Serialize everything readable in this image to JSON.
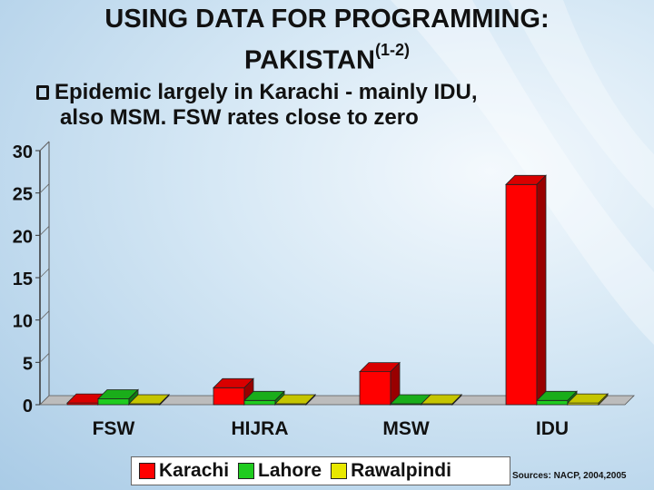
{
  "slide": {
    "title_line1": "USING DATA FOR PROGRAMMING:",
    "title_line2": "PAKISTAN",
    "title_sup": "(1-2)",
    "bullet_line1": "Epidemic largely in Karachi - mainly IDU,",
    "bullet_line2": "also MSM. FSW rates close to zero",
    "source": "Sources: NACP, 2004,2005"
  },
  "colors": {
    "Karachi": "#ff0000",
    "Lahore": "#1fcc1f",
    "Rawalpindi": "#e8e800"
  },
  "chart_data": {
    "type": "bar",
    "categories": [
      "FSW",
      "HIJRA",
      "MSW",
      "IDU"
    ],
    "series": [
      {
        "name": "Karachi",
        "values": [
          0.2,
          2,
          3.9,
          26
        ]
      },
      {
        "name": "Lahore",
        "values": [
          0.7,
          0.5,
          0,
          0.5
        ]
      },
      {
        "name": "Rawalpindi",
        "values": [
          0,
          0,
          0,
          0.2
        ]
      }
    ],
    "yticks": [
      "0",
      "5",
      "10",
      "15",
      "20",
      "25",
      "30"
    ],
    "ylim": [
      0,
      30
    ],
    "legend_position": "bottom",
    "grid": false
  }
}
